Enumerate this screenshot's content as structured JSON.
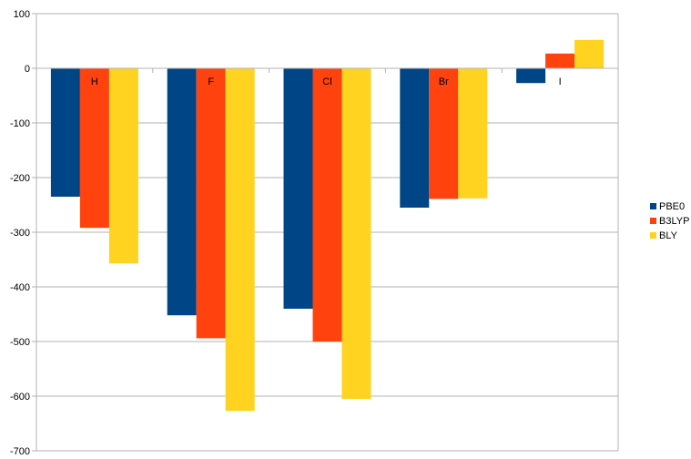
{
  "chart_data": {
    "type": "bar",
    "title": "",
    "xlabel": "",
    "ylabel": "",
    "categories": [
      "H",
      "F",
      "Cl",
      "Br",
      "I"
    ],
    "series": [
      {
        "name": "PBE0",
        "color": "#004586",
        "values": [
          -235,
          -452,
          -440,
          -255,
          -27
        ]
      },
      {
        "name": "B3LYP",
        "color": "#ff420e",
        "values": [
          -292,
          -494,
          -500,
          -239,
          27
        ]
      },
      {
        "name": "BLY",
        "color": "#ffd320",
        "values": [
          -357,
          -627,
          -605,
          -238,
          52
        ]
      }
    ],
    "ylim": [
      -700,
      100
    ],
    "yticks": [
      100,
      0,
      -100,
      -200,
      -300,
      -400,
      -500,
      -600,
      -700
    ],
    "grid": true,
    "legend_position": "right"
  }
}
